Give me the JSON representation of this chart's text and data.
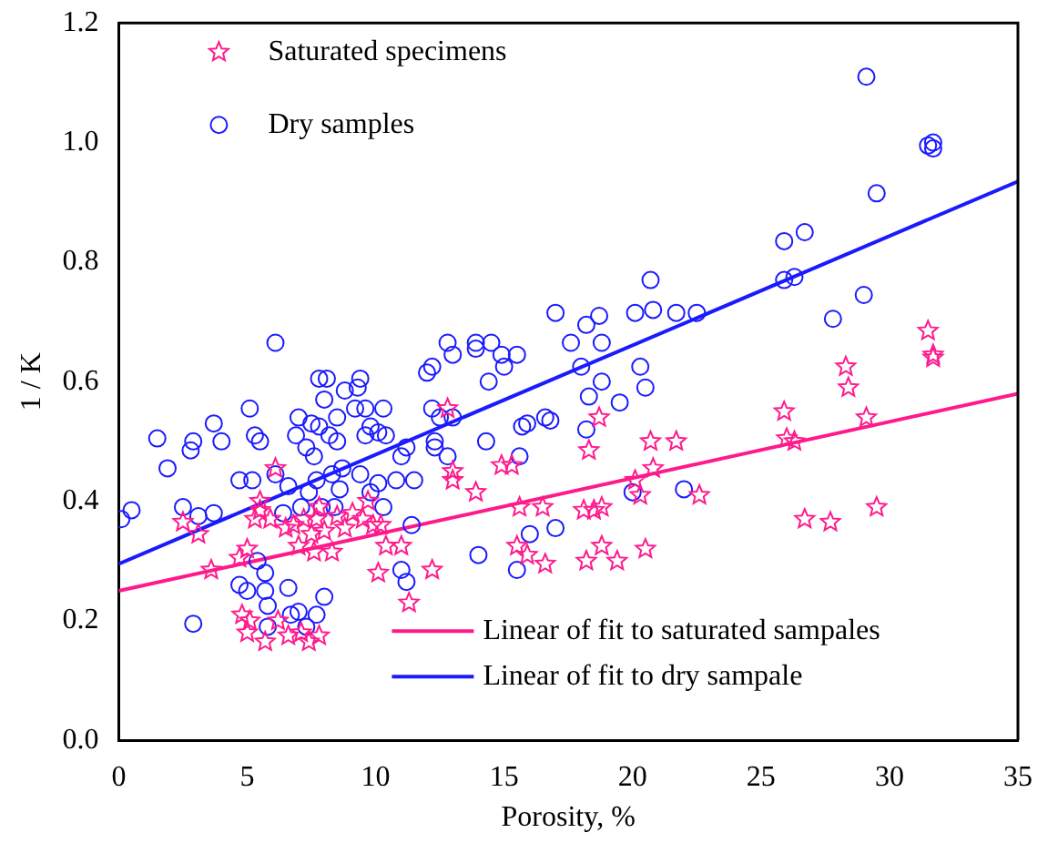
{
  "chart_data": {
    "type": "scatter",
    "xlabel": "Porosity, %",
    "ylabel": "1 / K",
    "xlim": [
      0,
      35
    ],
    "xticks": [
      0,
      5,
      10,
      15,
      20,
      25,
      30,
      35
    ],
    "ylim": [
      0,
      1.2
    ],
    "yticks": [
      {
        "value": 0,
        "label": "0.0"
      },
      0.2,
      0.4,
      0.6,
      0.8,
      {
        "value": 1,
        "label": "1.0"
      },
      {
        "value": 1.2,
        "label": "1.2"
      }
    ],
    "grid": false,
    "legend": "top left",
    "series": [
      {
        "name": "Saturated specimens",
        "marker": "star",
        "color": "#ff1a8c",
        "x": [
          2.5,
          3.1,
          3.6,
          4.7,
          5,
          4.8,
          5,
          5.1,
          5.3,
          5.5,
          5.5,
          5.7,
          5.9,
          6.1,
          6.2,
          6.5,
          6.6,
          6.8,
          7,
          7.1,
          7.2,
          7.4,
          7.5,
          7.6,
          7.7,
          7.8,
          7.8,
          8,
          8.3,
          8.5,
          8.8,
          9.1,
          9.5,
          9.7,
          9.9,
          10.1,
          10.2,
          10.4,
          11,
          11.3,
          12.2,
          12.8,
          13,
          13,
          13.9,
          14.9,
          15.3,
          15.5,
          15.6,
          15.9,
          16.5,
          16.6,
          18.1,
          18.2,
          18.3,
          18.5,
          18.7,
          18.8,
          18.8,
          19.4,
          20.1,
          20.3,
          20.5,
          20.7,
          20.8,
          21.7,
          22.6,
          25.9,
          26,
          26.3,
          26.7,
          27.7,
          28.3,
          28.4,
          29.1,
          29.5,
          31.5,
          31.7,
          31.7
        ],
        "values": [
          0.365,
          0.345,
          0.285,
          0.305,
          0.32,
          0.21,
          0.18,
          0.2,
          0.37,
          0.385,
          0.4,
          0.165,
          0.37,
          0.455,
          0.2,
          0.355,
          0.175,
          0.36,
          0.325,
          0.18,
          0.37,
          0.165,
          0.345,
          0.315,
          0.37,
          0.39,
          0.175,
          0.35,
          0.315,
          0.375,
          0.355,
          0.38,
          0.37,
          0.4,
          0.36,
          0.28,
          0.36,
          0.325,
          0.325,
          0.23,
          0.285,
          0.555,
          0.45,
          0.435,
          0.415,
          0.46,
          0.46,
          0.325,
          0.39,
          0.31,
          0.39,
          0.295,
          0.385,
          0.3,
          0.485,
          0.385,
          0.54,
          0.39,
          0.325,
          0.3,
          0.435,
          0.41,
          0.32,
          0.5,
          0.455,
          0.5,
          0.41,
          0.55,
          0.505,
          0.5,
          0.37,
          0.365,
          0.625,
          0.59,
          0.54,
          0.39,
          0.685,
          0.645,
          0.64
        ]
      },
      {
        "name": "Dry samples",
        "marker": "circle",
        "color": "#1a1aff",
        "x": [
          0.1,
          0.5,
          1.5,
          1.9,
          2.5,
          2.8,
          2.9,
          2.9,
          3.1,
          3.7,
          3.7,
          4,
          4.7,
          5.1,
          5.2,
          5.3,
          5.4,
          5.5,
          5.7,
          5.7,
          5.8,
          4.7,
          5,
          5.8,
          6.1,
          6.1,
          6.4,
          6.6,
          6.6,
          6.7,
          6.9,
          7,
          7,
          7.1,
          7.3,
          7.3,
          7.4,
          7.5,
          7.6,
          7.7,
          7.7,
          7.8,
          7.8,
          7.9,
          8,
          8,
          8.1,
          8.2,
          8.3,
          8.4,
          8.5,
          8.5,
          8.6,
          8.7,
          8.8,
          9.2,
          9.3,
          9.4,
          9.4,
          9.6,
          9.6,
          9.8,
          9.8,
          10.1,
          10.1,
          10.3,
          10.3,
          10.4,
          10.8,
          11,
          11,
          11.2,
          11.2,
          11.4,
          11.5,
          12,
          12.2,
          12.2,
          12.3,
          12.3,
          12.5,
          12.8,
          12.8,
          13,
          13,
          13.9,
          13.9,
          14,
          14.3,
          14.4,
          14.5,
          14.9,
          15,
          15.5,
          15.5,
          15.6,
          15.7,
          15.9,
          16,
          16.6,
          16.8,
          17,
          17,
          17.6,
          18,
          18.2,
          18.2,
          18.3,
          18.7,
          18.8,
          18.8,
          19.5,
          20,
          20.1,
          20.3,
          20.5,
          20.7,
          20.8,
          21.7,
          22,
          22.5,
          25.9,
          25.9,
          26.3,
          26.7,
          27.8,
          29,
          29.1,
          29.5,
          31.5,
          31.7,
          31.7
        ],
        "values": [
          0.37,
          0.385,
          0.505,
          0.455,
          0.39,
          0.485,
          0.5,
          0.195,
          0.375,
          0.38,
          0.53,
          0.5,
          0.435,
          0.555,
          0.435,
          0.51,
          0.3,
          0.5,
          0.28,
          0.25,
          0.19,
          0.26,
          0.25,
          0.225,
          0.665,
          0.445,
          0.38,
          0.425,
          0.255,
          0.21,
          0.51,
          0.54,
          0.215,
          0.39,
          0.19,
          0.49,
          0.415,
          0.53,
          0.475,
          0.21,
          0.435,
          0.605,
          0.525,
          0.39,
          0.24,
          0.57,
          0.605,
          0.51,
          0.445,
          0.39,
          0.54,
          0.5,
          0.42,
          0.455,
          0.585,
          0.555,
          0.59,
          0.605,
          0.445,
          0.555,
          0.51,
          0.415,
          0.525,
          0.43,
          0.515,
          0.39,
          0.555,
          0.51,
          0.435,
          0.475,
          0.285,
          0.265,
          0.49,
          0.36,
          0.435,
          0.615,
          0.555,
          0.625,
          0.49,
          0.5,
          0.54,
          0.665,
          0.475,
          0.645,
          0.54,
          0.665,
          0.655,
          0.31,
          0.5,
          0.6,
          0.665,
          0.645,
          0.625,
          0.645,
          0.285,
          0.475,
          0.525,
          0.53,
          0.345,
          0.54,
          0.535,
          0.355,
          0.715,
          0.665,
          0.625,
          0.52,
          0.695,
          0.575,
          0.71,
          0.665,
          0.6,
          0.565,
          0.415,
          0.715,
          0.625,
          0.59,
          0.77,
          0.72,
          0.715,
          0.42,
          0.715,
          0.835,
          0.77,
          0.775,
          0.85,
          0.705,
          0.745,
          1.11,
          0.915,
          0.995,
          0.99,
          1.0
        ]
      },
      {
        "name": "Linear of fit to saturated sampales",
        "type": "line",
        "marker": "none",
        "line_style": "solid",
        "color": "#ff1a8c",
        "x": [
          0,
          35
        ],
        "values": [
          0.25,
          0.58
        ]
      },
      {
        "name": "Linear of fit to dry sampale",
        "type": "line",
        "marker": "none",
        "line_style": "solid",
        "color": "#1a1aff",
        "x": [
          0,
          35
        ],
        "values": [
          0.295,
          0.935
        ]
      }
    ]
  }
}
